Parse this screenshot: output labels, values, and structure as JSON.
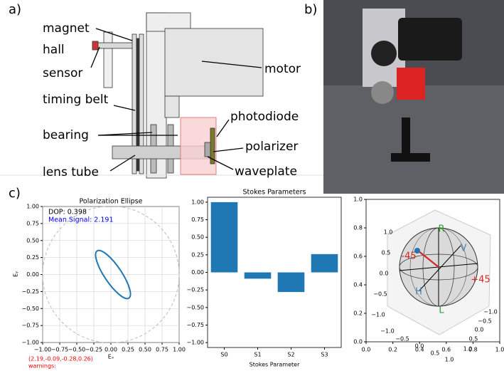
{
  "panel_labels": [
    "a)",
    "b)",
    "c)"
  ],
  "schematic": {
    "labels": [
      "magnet",
      "hall",
      "sensor",
      "timing belt",
      "bearing",
      "lens tube",
      "motor",
      "photodiode",
      "polarizer",
      "waveplate"
    ]
  },
  "ellipse_plot": {
    "title": "Polarization Ellipse",
    "xlabel": "Eₓ",
    "ylabel": "Eᵧ",
    "xlim": [
      -1,
      1
    ],
    "ylim": [
      -1,
      1
    ],
    "xticks": [
      {
        "value": -1,
        "label": "−1.00"
      },
      {
        "value": -0.75,
        "label": "−0.75"
      },
      {
        "value": -0.5,
        "label": "−0.50"
      },
      {
        "value": -0.25,
        "label": "−0.25"
      },
      {
        "value": 0,
        "label": "0.00"
      },
      {
        "value": 0.25,
        "label": "0.25"
      },
      {
        "value": 0.5,
        "label": "0.50"
      },
      {
        "value": 0.75,
        "label": "0.75"
      },
      {
        "value": 1,
        "label": "1.00"
      }
    ],
    "yticks": [
      {
        "value": -1,
        "label": "−1.00"
      },
      {
        "value": -0.75,
        "label": "−0.75"
      },
      {
        "value": -0.5,
        "label": "−0.50"
      },
      {
        "value": -0.25,
        "label": "−0.25"
      },
      {
        "value": 0,
        "label": "0.00"
      },
      {
        "value": 0.25,
        "label": "0.25"
      },
      {
        "value": 0.5,
        "label": "0.50"
      },
      {
        "value": 0.75,
        "label": "0.75"
      },
      {
        "value": 1,
        "label": "1.00"
      }
    ],
    "grid": true,
    "dop_text": "DOP: 0.398",
    "signal_text": "Mean Signal: 2.191",
    "stokes_text": "(2.19,-0.09,-0.28,0.26)",
    "warnings_text": "warnings:"
  },
  "stokes_plot": {
    "type": "bar",
    "title": "Stokes Parameters",
    "xlabel": "Stokes Parameter",
    "categories": [
      "S0",
      "S1",
      "S2",
      "S3"
    ],
    "values": [
      1.0,
      -0.09,
      -0.28,
      0.26
    ],
    "color": "#1f77b4",
    "ylim": [
      -1.07,
      1.07
    ],
    "yticks": [
      {
        "value": -1,
        "label": "−1.00"
      },
      {
        "value": -0.75,
        "label": "−0.75"
      },
      {
        "value": -0.5,
        "label": "−0.50"
      },
      {
        "value": -0.25,
        "label": "−0.25"
      },
      {
        "value": 0,
        "label": "0.00"
      },
      {
        "value": 0.25,
        "label": "0.25"
      },
      {
        "value": 0.5,
        "label": "0.50"
      },
      {
        "value": 0.75,
        "label": "0.75"
      },
      {
        "value": 1,
        "label": "1.00"
      }
    ]
  },
  "sphere_plot": {
    "xlim": [
      0,
      1
    ],
    "ylim": [
      0,
      1
    ],
    "xticks": [
      {
        "value": 0,
        "label": "0.0"
      },
      {
        "value": 0.2,
        "label": "0.2"
      },
      {
        "value": 0.4,
        "label": "0.4"
      },
      {
        "value": 0.6,
        "label": "0.6"
      },
      {
        "value": 0.8,
        "label": "0.8"
      },
      {
        "value": 1,
        "label": "1.0"
      }
    ],
    "yticks": [
      {
        "value": 0,
        "label": "0.0"
      },
      {
        "value": 0.2,
        "label": "0.2"
      },
      {
        "value": 0.4,
        "label": "0.4"
      },
      {
        "value": 0.6,
        "label": "0.6"
      },
      {
        "value": 0.8,
        "label": "0.8"
      },
      {
        "value": 1,
        "label": "1.0"
      }
    ],
    "axis_x_ticks": [
      "−1.0",
      "−0.5",
      "0.0",
      "0.5",
      "1.0"
    ],
    "axis_y_ticks": [
      "−1.0",
      "−0.5",
      "0.0",
      "0.5",
      "1.0"
    ],
    "axis_z_ticks": [
      "−1.0",
      "−0.5",
      "0.0",
      "0.5",
      "1.0"
    ],
    "state_labels": [
      "R",
      "L",
      "V",
      "H",
      "-45",
      "+45"
    ]
  }
}
